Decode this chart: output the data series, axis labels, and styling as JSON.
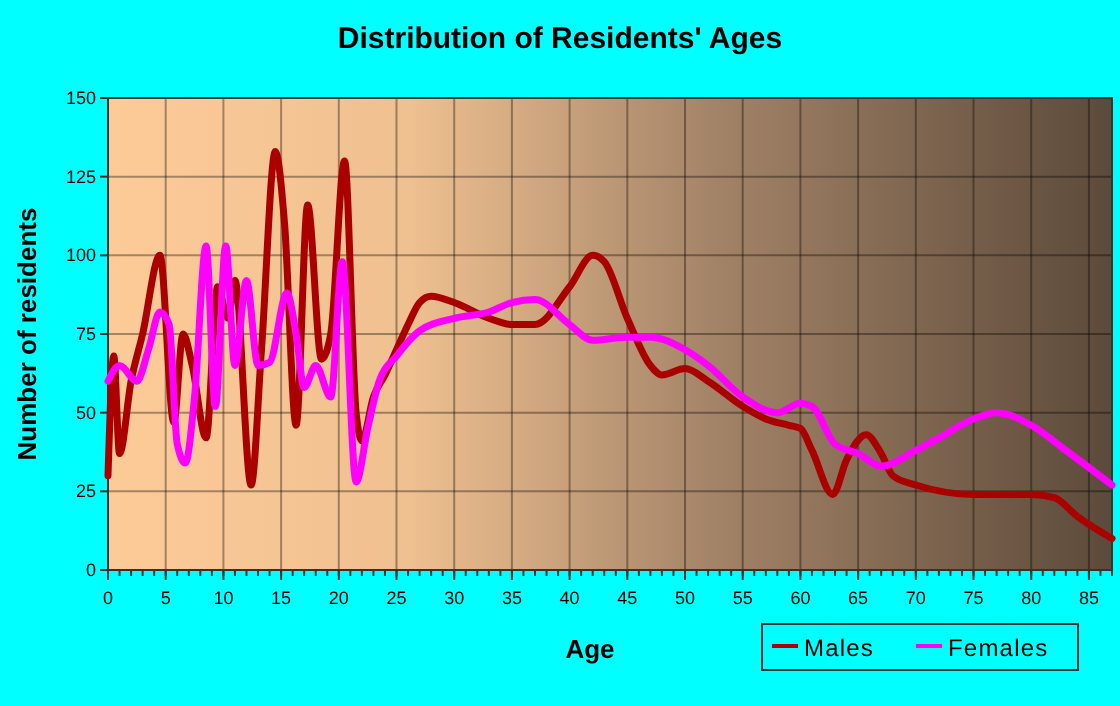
{
  "chart_data": {
    "type": "line",
    "title": "Distribution of Residents' Ages",
    "xlabel": "Age",
    "ylabel": "Number of residents",
    "xlim": [
      0,
      87
    ],
    "ylim": [
      0,
      150
    ],
    "xticks": [
      0,
      5,
      10,
      15,
      20,
      25,
      30,
      35,
      40,
      45,
      50,
      55,
      60,
      65,
      70,
      75,
      80,
      85
    ],
    "yticks": [
      0,
      25,
      50,
      75,
      100,
      125,
      150
    ],
    "grid": true,
    "legend": "bottom right",
    "line_style": "solid",
    "series": [
      {
        "name": "Males",
        "color": "#aa0000",
        "x": [
          0,
          0.5,
          1,
          2,
          3,
          4.5,
          5.7,
          6.5,
          7.3,
          8.5,
          9.5,
          10.4,
          11,
          12.4,
          13.3,
          14.5,
          15.3,
          16.3,
          17.3,
          18.5,
          19.3,
          20.5,
          21.5,
          22,
          23,
          24,
          25,
          26,
          27,
          28,
          30,
          33,
          35,
          37,
          40,
          42,
          43,
          45,
          47,
          48,
          50,
          52,
          55,
          57,
          59,
          60,
          61,
          62.8,
          64,
          65.7,
          67,
          68,
          70,
          75,
          80,
          82,
          84,
          87
        ],
        "values": [
          30,
          68,
          37,
          60,
          75,
          100,
          47,
          75,
          65,
          42,
          90,
          80,
          92,
          27,
          70,
          133,
          110,
          46,
          116,
          67,
          75,
          130,
          50,
          41,
          55,
          62,
          70,
          78,
          85,
          87,
          85,
          80,
          78,
          78,
          90,
          100,
          98,
          80,
          65,
          62,
          64,
          60,
          52,
          48,
          46,
          45,
          38,
          24,
          35,
          43,
          37,
          30,
          27,
          24,
          24,
          23,
          17,
          10
        ]
      },
      {
        "name": "Females",
        "color": "#ff00ff",
        "x": [
          0,
          1,
          2.5,
          3.5,
          4.5,
          5.3,
          6,
          6.7,
          7.5,
          8.5,
          9.3,
          10.2,
          11,
          12,
          13,
          14,
          15.5,
          16.3,
          17,
          18,
          19.3,
          20.3,
          21.5,
          22.5,
          23.5,
          25,
          27,
          30,
          33,
          35,
          37,
          40,
          42,
          45,
          47,
          50,
          52,
          55,
          58,
          60,
          61,
          63,
          65,
          67,
          70,
          72,
          75,
          77,
          80,
          83,
          87
        ],
        "values": [
          60,
          65,
          60,
          70,
          82,
          78,
          40,
          34,
          55,
          103,
          52,
          103,
          65,
          92,
          65,
          66,
          88,
          75,
          58,
          65,
          55,
          98,
          28,
          45,
          60,
          68,
          76,
          80,
          82,
          85,
          86,
          78,
          73,
          74,
          74,
          70,
          65,
          55,
          50,
          53,
          52,
          40,
          37,
          33,
          38,
          42,
          48,
          50,
          46,
          38,
          27
        ]
      }
    ]
  }
}
